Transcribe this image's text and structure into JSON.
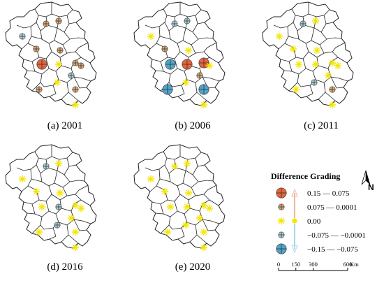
{
  "panels": [
    {
      "caption": "(a)  2001",
      "symbols": [
        {
          "g": "minus-small"
        },
        {
          "g": "plus-small"
        },
        {
          "g": "plus-small"
        },
        {
          "g": "plus-small"
        },
        {
          "g": "plus-large"
        },
        {
          "g": "zero"
        },
        {
          "g": "plus-small"
        },
        {
          "g": "plus-small"
        },
        {
          "g": "plus-small"
        },
        {
          "g": "zero"
        },
        {
          "g": "plus-small"
        },
        {
          "g": "plus-small"
        },
        {
          "g": "minus-small"
        },
        {
          "g": "zero"
        }
      ]
    },
    {
      "caption": "(b)  2006",
      "symbols": [
        {
          "g": "zero"
        },
        {
          "g": "minus-small"
        },
        {
          "g": "minus-small"
        },
        {
          "g": "plus-small"
        },
        {
          "g": "minus-large"
        },
        {
          "g": "plus-large"
        },
        {
          "g": "plus-large"
        },
        {
          "g": "zero"
        },
        {
          "g": "zero"
        },
        {
          "g": "zero"
        },
        {
          "g": "minus-large"
        },
        {
          "g": "minus-large"
        },
        {
          "g": "plus-small"
        },
        {
          "g": "zero"
        }
      ]
    },
    {
      "caption": "(c)  2011",
      "symbols": [
        {
          "g": "zero"
        },
        {
          "g": "minus-small"
        },
        {
          "g": "zero"
        },
        {
          "g": "zero"
        },
        {
          "g": "zero"
        },
        {
          "g": "zero"
        },
        {
          "g": "zero"
        },
        {
          "g": "zero"
        },
        {
          "g": "zero"
        },
        {
          "g": "minus-small"
        },
        {
          "g": "zero"
        },
        {
          "g": "plus-small"
        },
        {
          "g": "zero"
        },
        {
          "g": "zero"
        }
      ]
    },
    {
      "caption": "(d)  2016",
      "symbols": [
        {
          "g": "zero"
        },
        {
          "g": "minus-small"
        },
        {
          "g": "zero"
        },
        {
          "g": "zero"
        },
        {
          "g": "zero"
        },
        {
          "g": "minus-small"
        },
        {
          "g": "zero"
        },
        {
          "g": "zero"
        },
        {
          "g": "zero"
        },
        {
          "g": "minus-small"
        },
        {
          "g": "zero"
        },
        {
          "g": "zero"
        },
        {
          "g": "zero"
        },
        {
          "g": "zero"
        }
      ]
    },
    {
      "caption": "(e)  2020",
      "symbols": [
        {
          "g": "zero"
        },
        {
          "g": "zero"
        },
        {
          "g": "zero"
        },
        {
          "g": "zero"
        },
        {
          "g": "zero"
        },
        {
          "g": "zero"
        },
        {
          "g": "zero"
        },
        {
          "g": "zero"
        },
        {
          "g": "zero"
        },
        {
          "g": "zero"
        },
        {
          "g": "zero"
        },
        {
          "g": "zero"
        },
        {
          "g": "zero"
        },
        {
          "g": "zero"
        }
      ]
    }
  ],
  "legend": {
    "title": "Difference Grading",
    "items": [
      {
        "grade": "plus-large",
        "label": "0.15 — 0.075"
      },
      {
        "grade": "plus-small",
        "label": "0.075 — 0.0001"
      },
      {
        "grade": "zero",
        "label": "0.00"
      },
      {
        "grade": "minus-small",
        "label": "−0.075 — −0.0001"
      },
      {
        "grade": "minus-large",
        "label": "−0.15 — −0.075"
      }
    ]
  },
  "scale_bar": {
    "ticks": [
      "0",
      "150",
      "300",
      "600"
    ],
    "unit": "Km"
  },
  "north_arrow": {
    "label": "N"
  },
  "colors": {
    "plus_large": "#e8643a",
    "plus_small": "#e0aa72",
    "zero": "#f5e600",
    "minus_small": "#a9d2dd",
    "minus_large": "#4fa4cc",
    "arrow_orange": "#f0b6a0",
    "arrow_blue": "#a9d6ea"
  }
}
